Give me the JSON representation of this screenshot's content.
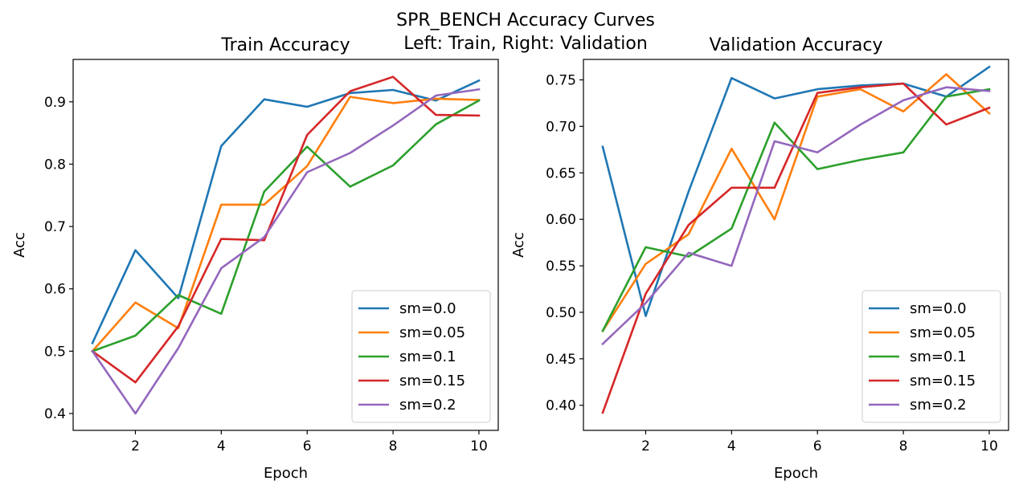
{
  "figure": {
    "suptitle_line1": "SPR_BENCH Accuracy Curves",
    "suptitle_line2": "Left: Train, Right: Validation"
  },
  "colors": [
    "#1f77b4",
    "#ff7f0e",
    "#2ca02c",
    "#d62728",
    "#9467bd"
  ],
  "chart_data": [
    {
      "type": "line",
      "title": "Train Accuracy",
      "xlabel": "Epoch",
      "ylabel": "Acc",
      "x": [
        1,
        2,
        3,
        4,
        5,
        6,
        7,
        8,
        9,
        10
      ],
      "xlim": [
        0.55,
        10.45
      ],
      "ylim": [
        0.373,
        0.968
      ],
      "xticks": [
        2,
        4,
        6,
        8,
        10
      ],
      "yticks": [
        0.4,
        0.5,
        0.6,
        0.7,
        0.8,
        0.9
      ],
      "ytick_labels": [
        "0.4",
        "0.5",
        "0.6",
        "0.7",
        "0.8",
        "0.9"
      ],
      "legend_loc": "lower right",
      "grid": false,
      "series": [
        {
          "name": "sm=0.0",
          "values": [
            0.513,
            0.662,
            0.585,
            0.829,
            0.904,
            0.892,
            0.914,
            0.919,
            0.902,
            0.934
          ]
        },
        {
          "name": "sm=0.05",
          "values": [
            0.5,
            0.578,
            0.537,
            0.735,
            0.735,
            0.797,
            0.908,
            0.898,
            0.905,
            0.903
          ]
        },
        {
          "name": "sm=0.1",
          "values": [
            0.5,
            0.525,
            0.59,
            0.56,
            0.756,
            0.828,
            0.764,
            0.798,
            0.864,
            0.902
          ]
        },
        {
          "name": "sm=0.15",
          "values": [
            0.5,
            0.45,
            0.54,
            0.68,
            0.678,
            0.847,
            0.917,
            0.94,
            0.879,
            0.878
          ]
        },
        {
          "name": "sm=0.2",
          "values": [
            0.5,
            0.4,
            0.505,
            0.633,
            0.683,
            0.787,
            0.818,
            0.862,
            0.91,
            0.92
          ]
        }
      ]
    },
    {
      "type": "line",
      "title": "Validation Accuracy",
      "xlabel": "Epoch",
      "ylabel": "Acc",
      "x": [
        1,
        2,
        3,
        4,
        5,
        6,
        7,
        8,
        9,
        10
      ],
      "xlim": [
        0.55,
        10.45
      ],
      "ylim": [
        0.373,
        0.772
      ],
      "xticks": [
        2,
        4,
        6,
        8,
        10
      ],
      "yticks": [
        0.4,
        0.45,
        0.5,
        0.55,
        0.6,
        0.65,
        0.7,
        0.75
      ],
      "ytick_labels": [
        "0.40",
        "0.45",
        "0.50",
        "0.55",
        "0.60",
        "0.65",
        "0.70",
        "0.75"
      ],
      "legend_loc": "lower right",
      "grid": false,
      "series": [
        {
          "name": "sm=0.0",
          "values": [
            0.678,
            0.496,
            0.63,
            0.752,
            0.73,
            0.74,
            0.744,
            0.746,
            0.732,
            0.764
          ]
        },
        {
          "name": "sm=0.05",
          "values": [
            0.48,
            0.552,
            0.584,
            0.676,
            0.6,
            0.732,
            0.74,
            0.716,
            0.756,
            0.714
          ]
        },
        {
          "name": "sm=0.1",
          "values": [
            0.48,
            0.57,
            0.56,
            0.59,
            0.704,
            0.654,
            0.664,
            0.672,
            0.732,
            0.74
          ]
        },
        {
          "name": "sm=0.15",
          "values": [
            0.392,
            0.52,
            0.594,
            0.634,
            0.634,
            0.736,
            0.742,
            0.746,
            0.702,
            0.72
          ]
        },
        {
          "name": "sm=0.2",
          "values": [
            0.466,
            0.51,
            0.564,
            0.55,
            0.684,
            0.672,
            0.702,
            0.728,
            0.742,
            0.738
          ]
        }
      ]
    }
  ]
}
